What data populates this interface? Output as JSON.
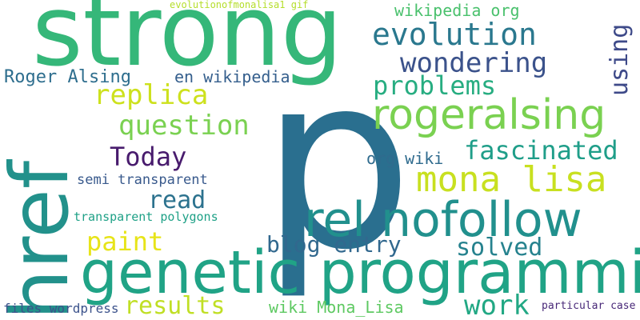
{
  "words": [
    {
      "id": "p",
      "text": "p",
      "color": "#2a6f8f"
    },
    {
      "id": "strong",
      "text": "strong",
      "color": "#35b779"
    },
    {
      "id": "href",
      "text": "href",
      "color": "#22918b"
    },
    {
      "id": "genetic-programming",
      "text": "genetic programming",
      "color": "#20a386"
    },
    {
      "id": "rel-nofollow",
      "text": "rel nofollow",
      "color": "#21908d"
    },
    {
      "id": "rogeralsing",
      "text": "rogeralsing",
      "color": "#7ad151"
    },
    {
      "id": "mona-lisa",
      "text": "mona lisa",
      "color": "#c8e020"
    },
    {
      "id": "evolution",
      "text": "evolution",
      "color": "#2a788e"
    },
    {
      "id": "wondering",
      "text": "wondering",
      "color": "#3b528b"
    },
    {
      "id": "problems",
      "text": "problems",
      "color": "#27ad81"
    },
    {
      "id": "fascinated",
      "text": "fascinated",
      "color": "#1f9e89"
    },
    {
      "id": "question",
      "text": "question",
      "color": "#7ad151"
    },
    {
      "id": "replica",
      "text": "replica",
      "color": "#cde11d"
    },
    {
      "id": "today",
      "text": "Today",
      "color": "#481b6d"
    },
    {
      "id": "read",
      "text": "read",
      "color": "#2c728e"
    },
    {
      "id": "paint",
      "text": "paint",
      "color": "#e7e419"
    },
    {
      "id": "results",
      "text": "results",
      "color": "#c0df25"
    },
    {
      "id": "blog-entry",
      "text": "blog entry",
      "color": "#31688e"
    },
    {
      "id": "solved",
      "text": "solved",
      "color": "#26828e"
    },
    {
      "id": "work",
      "text": "work",
      "color": "#22a884"
    },
    {
      "id": "using",
      "text": "using",
      "color": "#3e4a89"
    },
    {
      "id": "wikipedia-org",
      "text": "wikipedia org",
      "color": "#4ac16d"
    },
    {
      "id": "roger-alsing",
      "text": "Roger Alsing",
      "color": "#2e6e8e"
    },
    {
      "id": "en-wikipedia",
      "text": "en wikipedia",
      "color": "#355f8d"
    },
    {
      "id": "org-wiki",
      "text": "org wiki",
      "color": "#2f6b8e"
    },
    {
      "id": "semi-transparent",
      "text": "semi transparent",
      "color": "#38598c"
    },
    {
      "id": "transparent-polygons",
      "text": "transparent polygons",
      "color": "#1fa187"
    },
    {
      "id": "wiki-mona-lisa",
      "text": "wiki Mona_Lisa",
      "color": "#5ec962"
    },
    {
      "id": "files-wordpress",
      "text": "files wordpress",
      "color": "#3b528b"
    },
    {
      "id": "particular-case",
      "text": "particular case",
      "color": "#482878"
    },
    {
      "id": "evolutionofmonalisa1-gif",
      "text": "evolutionofmonalisa1 gif",
      "color": "#b5de2b"
    }
  ]
}
